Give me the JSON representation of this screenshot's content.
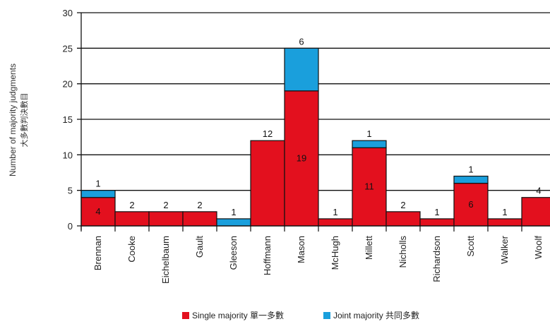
{
  "chart_data": {
    "type": "bar",
    "stacked": true,
    "ylabel": "Number of majority judgments",
    "ylabel_cn": "大多數判決數目",
    "ylim": [
      0,
      30
    ],
    "yticks": [
      0,
      5,
      10,
      15,
      20,
      25,
      30
    ],
    "grid": true,
    "legend_position": "bottom",
    "categories": [
      "Brennan",
      "Cooke",
      "Eichelbaum",
      "Gault",
      "Gleeson",
      "Hoffmann",
      "Mason",
      "McHugh",
      "Millett",
      "Nicholls",
      "Richardson",
      "Scott",
      "Walker",
      "Woolf"
    ],
    "series": [
      {
        "name": "Single majority 單一多數",
        "color": "#e3101e",
        "values": [
          4,
          2,
          2,
          2,
          0,
          12,
          19,
          1,
          11,
          2,
          1,
          6,
          1,
          4
        ]
      },
      {
        "name": "Joint majority 共同多數",
        "color": "#1a9fdc",
        "values": [
          1,
          0,
          0,
          0,
          1,
          0,
          6,
          0,
          1,
          0,
          0,
          1,
          0,
          0
        ]
      }
    ],
    "data_labels": [
      {
        "category": "Brennan",
        "above": "1",
        "inside": "4"
      },
      {
        "category": "Cooke",
        "above": "2"
      },
      {
        "category": "Eichelbaum",
        "above": "2"
      },
      {
        "category": "Gault",
        "above": "2"
      },
      {
        "category": "Gleeson",
        "above": "1"
      },
      {
        "category": "Hoffmann",
        "above": "12"
      },
      {
        "category": "Mason",
        "above": "6",
        "inside": "19"
      },
      {
        "category": "McHugh",
        "above": "1"
      },
      {
        "category": "Millett",
        "above": "1",
        "inside": "11"
      },
      {
        "category": "Nicholls",
        "above": "2"
      },
      {
        "category": "Richardson",
        "above": "1"
      },
      {
        "category": "Scott",
        "above": "1",
        "inside": "6"
      },
      {
        "category": "Walker",
        "above": "1"
      },
      {
        "category": "Woolf",
        "above": "4"
      }
    ]
  }
}
